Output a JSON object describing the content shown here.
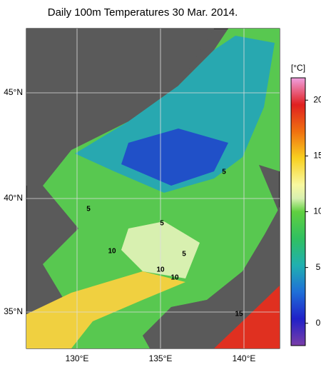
{
  "header": {
    "title": "Daily 100m Temperatures 30 Mar. 2014."
  },
  "axes": {
    "lat_labels": [
      "45°N",
      "40°N",
      "35°N"
    ],
    "lon_labels": [
      "130°E",
      "135°E",
      "140°E"
    ]
  },
  "colorbar": {
    "label": "[°C]",
    "lim": [
      -2,
      22
    ],
    "ticks": [
      0,
      5,
      10,
      15,
      20
    ]
  },
  "contour_labels": [
    5,
    5,
    5,
    5,
    10,
    10,
    10,
    15
  ]
}
